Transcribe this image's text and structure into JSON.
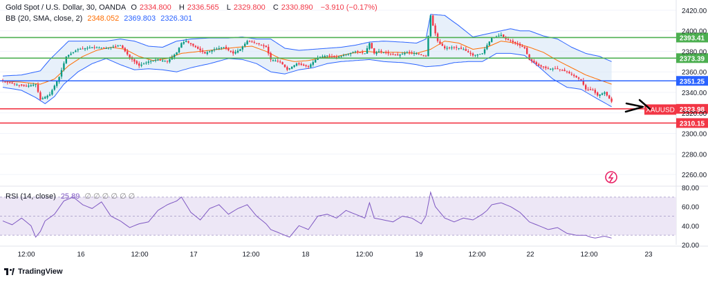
{
  "header": {
    "symbol": "Gold Spot / U.S. Dollar, 30, OANDA",
    "o_label": "O",
    "o_value": "2334.800",
    "h_label": "H",
    "h_value": "2336.565",
    "l_label": "L",
    "l_value": "2329.800",
    "c_label": "C",
    "c_value": "2330.890",
    "change": "−3.910 (−0.17%)"
  },
  "bb": {
    "label": "BB (20, SMA, close, 2)",
    "basis": "2348.052",
    "upper": "2369.803",
    "lower": "2326.301"
  },
  "rsi": {
    "label": "RSI (14, close)",
    "value": "25.89",
    "extras": "∅ ∅ ∅ ∅ ∅ ∅"
  },
  "brand": {
    "name": "TradingView"
  },
  "colors": {
    "up": "#089981",
    "down": "#f23645",
    "bb_line": "#2962ff",
    "basis": "#ff6d00",
    "bb_fill": "#d7e6f7",
    "rsi_line": "#7e57c2",
    "rsi_band": "#ede7f6",
    "support": "#f23645",
    "resistance": "#4caf50",
    "pivot": "#2962ff"
  },
  "chart_data": {
    "type": "candlestick",
    "title": "Gold Spot / U.S. Dollar, 30, OANDA",
    "ylim": [
      2250,
      2430
    ],
    "price_ticks": [
      2260,
      2280,
      2300,
      2320,
      2340,
      2360,
      2380,
      2400,
      2420
    ],
    "x_ticks": [
      "12:00",
      "16",
      "12:00",
      "17",
      "12:00",
      "18",
      "12:00",
      "19",
      "12:00",
      "22",
      "12:00",
      "23"
    ],
    "horizontal_levels": [
      {
        "label": "2393.41",
        "value": 2393.41,
        "color": "#4caf50"
      },
      {
        "label": "2373.39",
        "value": 2373.39,
        "color": "#4caf50"
      },
      {
        "label": "2351.25",
        "value": 2351.25,
        "color": "#2962ff"
      },
      {
        "label": "2323.98",
        "value": 2323.98,
        "color": "#f23645"
      },
      {
        "label": "2310.15",
        "value": 2310.15,
        "color": "#f23645"
      }
    ],
    "current_label": "XAUUSD",
    "close_path": [
      [
        0,
        2351
      ],
      [
        5,
        2348
      ],
      [
        10,
        2346
      ],
      [
        14,
        2348
      ],
      [
        16,
        2333
      ],
      [
        20,
        2338
      ],
      [
        24,
        2355
      ],
      [
        27,
        2375
      ],
      [
        32,
        2382
      ],
      [
        38,
        2384
      ],
      [
        44,
        2383
      ],
      [
        50,
        2386
      ],
      [
        54,
        2374
      ],
      [
        58,
        2366
      ],
      [
        62,
        2370
      ],
      [
        66,
        2372
      ],
      [
        70,
        2370
      ],
      [
        74,
        2379
      ],
      [
        76,
        2388
      ],
      [
        78,
        2390
      ],
      [
        82,
        2384
      ],
      [
        86,
        2378
      ],
      [
        90,
        2382
      ],
      [
        94,
        2384
      ],
      [
        98,
        2378
      ],
      [
        101,
        2382
      ],
      [
        104,
        2390
      ],
      [
        108,
        2388
      ],
      [
        112,
        2384
      ],
      [
        114,
        2372
      ],
      [
        118,
        2370
      ],
      [
        121,
        2362
      ],
      [
        125,
        2368
      ],
      [
        130,
        2365
      ],
      [
        134,
        2374
      ],
      [
        138,
        2376
      ],
      [
        142,
        2374
      ],
      [
        146,
        2377
      ],
      [
        150,
        2380
      ],
      [
        154,
        2378
      ],
      [
        156,
        2388
      ],
      [
        158,
        2378
      ],
      [
        160,
        2380
      ],
      [
        164,
        2378
      ],
      [
        168,
        2376
      ],
      [
        172,
        2379
      ],
      [
        176,
        2378
      ],
      [
        180,
        2375
      ],
      [
        182,
        2415
      ],
      [
        183,
        2405
      ],
      [
        185,
        2390
      ],
      [
        188,
        2383
      ],
      [
        192,
        2384
      ],
      [
        196,
        2382
      ],
      [
        200,
        2376
      ],
      [
        204,
        2378
      ],
      [
        206,
        2386
      ],
      [
        208,
        2393
      ],
      [
        212,
        2396
      ],
      [
        214,
        2392
      ],
      [
        218,
        2388
      ],
      [
        222,
        2383
      ],
      [
        224,
        2372
      ],
      [
        228,
        2366
      ],
      [
        232,
        2363
      ],
      [
        236,
        2363
      ],
      [
        240,
        2360
      ],
      [
        243,
        2356
      ],
      [
        246,
        2352
      ],
      [
        248,
        2343
      ],
      [
        251,
        2342
      ],
      [
        253,
        2337
      ],
      [
        256,
        2340
      ],
      [
        258,
        2334
      ],
      [
        259,
        2331
      ]
    ],
    "bb_upper": [
      [
        0,
        2356
      ],
      [
        8,
        2357
      ],
      [
        16,
        2361
      ],
      [
        20,
        2372
      ],
      [
        28,
        2390
      ],
      [
        36,
        2390
      ],
      [
        44,
        2390
      ],
      [
        50,
        2392
      ],
      [
        56,
        2390
      ],
      [
        62,
        2385
      ],
      [
        68,
        2384
      ],
      [
        74,
        2390
      ],
      [
        80,
        2392
      ],
      [
        88,
        2393
      ],
      [
        96,
        2393
      ],
      [
        102,
        2394
      ],
      [
        108,
        2392
      ],
      [
        114,
        2392
      ],
      [
        120,
        2383
      ],
      [
        126,
        2381
      ],
      [
        132,
        2382
      ],
      [
        138,
        2383
      ],
      [
        144,
        2384
      ],
      [
        150,
        2386
      ],
      [
        156,
        2389
      ],
      [
        162,
        2390
      ],
      [
        170,
        2389
      ],
      [
        176,
        2388
      ],
      [
        180,
        2392
      ],
      [
        182,
        2416
      ],
      [
        188,
        2415
      ],
      [
        194,
        2405
      ],
      [
        200,
        2394
      ],
      [
        206,
        2397
      ],
      [
        212,
        2400
      ],
      [
        216,
        2402
      ],
      [
        220,
        2400
      ],
      [
        224,
        2400
      ],
      [
        230,
        2395
      ],
      [
        236,
        2392
      ],
      [
        242,
        2384
      ],
      [
        248,
        2378
      ],
      [
        254,
        2375
      ],
      [
        259,
        2370
      ]
    ],
    "bb_lower": [
      [
        0,
        2345
      ],
      [
        8,
        2342
      ],
      [
        14,
        2335
      ],
      [
        18,
        2329
      ],
      [
        22,
        2336
      ],
      [
        26,
        2348
      ],
      [
        32,
        2360
      ],
      [
        38,
        2368
      ],
      [
        44,
        2373
      ],
      [
        50,
        2367
      ],
      [
        56,
        2362
      ],
      [
        62,
        2363
      ],
      [
        68,
        2362
      ],
      [
        74,
        2360
      ],
      [
        80,
        2364
      ],
      [
        88,
        2368
      ],
      [
        96,
        2373
      ],
      [
        102,
        2372
      ],
      [
        108,
        2368
      ],
      [
        114,
        2360
      ],
      [
        120,
        2358
      ],
      [
        126,
        2362
      ],
      [
        132,
        2364
      ],
      [
        138,
        2368
      ],
      [
        144,
        2370
      ],
      [
        150,
        2371
      ],
      [
        156,
        2372
      ],
      [
        162,
        2370
      ],
      [
        170,
        2369
      ],
      [
        176,
        2367
      ],
      [
        180,
        2365
      ],
      [
        186,
        2366
      ],
      [
        192,
        2369
      ],
      [
        198,
        2370
      ],
      [
        204,
        2370
      ],
      [
        210,
        2378
      ],
      [
        216,
        2378
      ],
      [
        222,
        2376
      ],
      [
        228,
        2365
      ],
      [
        234,
        2353
      ],
      [
        240,
        2345
      ],
      [
        246,
        2343
      ],
      [
        252,
        2335
      ],
      [
        259,
        2326
      ]
    ],
    "bb_basis": [
      [
        0,
        2351
      ],
      [
        8,
        2350
      ],
      [
        16,
        2348
      ],
      [
        22,
        2353
      ],
      [
        28,
        2366
      ],
      [
        34,
        2375
      ],
      [
        40,
        2381
      ],
      [
        46,
        2384
      ],
      [
        52,
        2382
      ],
      [
        58,
        2375
      ],
      [
        64,
        2371
      ],
      [
        70,
        2373
      ],
      [
        76,
        2378
      ],
      [
        84,
        2380
      ],
      [
        92,
        2382
      ],
      [
        100,
        2384
      ],
      [
        106,
        2385
      ],
      [
        112,
        2380
      ],
      [
        118,
        2373
      ],
      [
        124,
        2370
      ],
      [
        130,
        2371
      ],
      [
        136,
        2374
      ],
      [
        142,
        2375
      ],
      [
        148,
        2378
      ],
      [
        154,
        2380
      ],
      [
        160,
        2379
      ],
      [
        168,
        2379
      ],
      [
        176,
        2378
      ],
      [
        182,
        2382
      ],
      [
        188,
        2390
      ],
      [
        194,
        2388
      ],
      [
        200,
        2382
      ],
      [
        206,
        2384
      ],
      [
        212,
        2390
      ],
      [
        218,
        2388
      ],
      [
        224,
        2384
      ],
      [
        230,
        2379
      ],
      [
        236,
        2371
      ],
      [
        242,
        2364
      ],
      [
        248,
        2357
      ],
      [
        254,
        2352
      ],
      [
        259,
        2348
      ]
    ],
    "rsi_ylim": [
      20,
      80
    ],
    "rsi_ticks": [
      20,
      40,
      60,
      80
    ],
    "rsi_bands": [
      30,
      70
    ],
    "rsi_values": [
      [
        0,
        45
      ],
      [
        4,
        41
      ],
      [
        8,
        48
      ],
      [
        12,
        40
      ],
      [
        14,
        28
      ],
      [
        16,
        34
      ],
      [
        18,
        45
      ],
      [
        22,
        52
      ],
      [
        26,
        66
      ],
      [
        30,
        70
      ],
      [
        34,
        62
      ],
      [
        38,
        58
      ],
      [
        42,
        65
      ],
      [
        46,
        50
      ],
      [
        50,
        45
      ],
      [
        54,
        38
      ],
      [
        58,
        42
      ],
      [
        62,
        44
      ],
      [
        66,
        56
      ],
      [
        70,
        62
      ],
      [
        74,
        66
      ],
      [
        76,
        70
      ],
      [
        80,
        54
      ],
      [
        84,
        46
      ],
      [
        88,
        58
      ],
      [
        92,
        62
      ],
      [
        96,
        52
      ],
      [
        100,
        58
      ],
      [
        104,
        62
      ],
      [
        108,
        50
      ],
      [
        112,
        42
      ],
      [
        114,
        36
      ],
      [
        118,
        32
      ],
      [
        122,
        28
      ],
      [
        126,
        40
      ],
      [
        130,
        36
      ],
      [
        134,
        50
      ],
      [
        138,
        52
      ],
      [
        142,
        48
      ],
      [
        146,
        56
      ],
      [
        150,
        52
      ],
      [
        154,
        48
      ],
      [
        156,
        64
      ],
      [
        158,
        48
      ],
      [
        162,
        46
      ],
      [
        166,
        44
      ],
      [
        170,
        50
      ],
      [
        174,
        48
      ],
      [
        178,
        42
      ],
      [
        180,
        50
      ],
      [
        182,
        75
      ],
      [
        184,
        60
      ],
      [
        188,
        48
      ],
      [
        192,
        44
      ],
      [
        196,
        48
      ],
      [
        200,
        46
      ],
      [
        204,
        52
      ],
      [
        206,
        56
      ],
      [
        208,
        62
      ],
      [
        212,
        64
      ],
      [
        216,
        60
      ],
      [
        220,
        54
      ],
      [
        224,
        44
      ],
      [
        228,
        40
      ],
      [
        232,
        36
      ],
      [
        236,
        38
      ],
      [
        240,
        32
      ],
      [
        244,
        30
      ],
      [
        248,
        30
      ],
      [
        250,
        28
      ],
      [
        252,
        27
      ],
      [
        256,
        29
      ],
      [
        259,
        27
      ]
    ]
  }
}
